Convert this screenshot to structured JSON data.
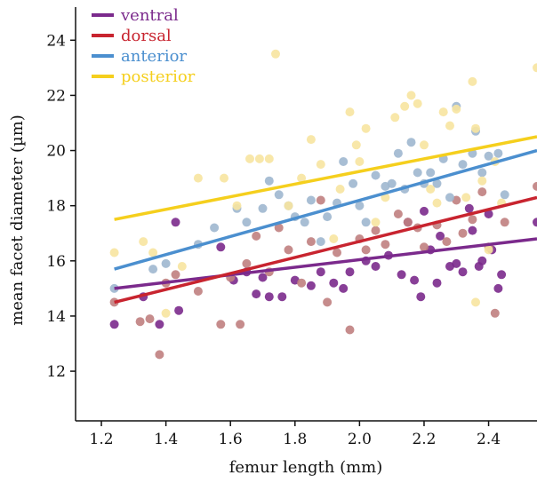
{
  "chart_data": {
    "type": "scatter",
    "xlabel": "femur length (mm)",
    "ylabel": "mean facet diameter (µm)",
    "xlim": [
      1.12,
      2.55
    ],
    "ylim": [
      10.2,
      25.2
    ],
    "xticks": [
      1.2,
      1.4,
      1.6,
      1.8,
      2.0,
      2.2,
      2.4
    ],
    "xtick_labels": [
      "1.2",
      "1.4",
      "1.6",
      "1.8",
      "2.0",
      "2.2",
      "2.4"
    ],
    "yticks": [
      12,
      14,
      16,
      18,
      20,
      22,
      24
    ],
    "ytick_labels": [
      "12",
      "14",
      "16",
      "18",
      "20",
      "22",
      "24"
    ],
    "grid": false,
    "legend_position": "top-left",
    "series": [
      {
        "name": "ventral",
        "color": "#7b2a8c",
        "point_color": "#7b2a8c",
        "fit": {
          "x": [
            1.24,
            2.55
          ],
          "y": [
            15.0,
            16.8
          ]
        },
        "points": [
          [
            1.24,
            13.7
          ],
          [
            1.33,
            14.7
          ],
          [
            1.38,
            13.7
          ],
          [
            1.43,
            17.4
          ],
          [
            1.44,
            14.2
          ],
          [
            1.57,
            16.5
          ],
          [
            1.61,
            15.3
          ],
          [
            1.65,
            15.6
          ],
          [
            1.68,
            14.8
          ],
          [
            1.7,
            15.4
          ],
          [
            1.72,
            14.7
          ],
          [
            1.76,
            14.7
          ],
          [
            1.8,
            15.3
          ],
          [
            1.85,
            15.1
          ],
          [
            1.88,
            15.6
          ],
          [
            1.92,
            15.2
          ],
          [
            1.95,
            15.0
          ],
          [
            1.97,
            15.6
          ],
          [
            2.02,
            16.0
          ],
          [
            2.05,
            15.8
          ],
          [
            2.09,
            16.2
          ],
          [
            2.13,
            15.5
          ],
          [
            2.15,
            17.4
          ],
          [
            2.17,
            15.3
          ],
          [
            2.19,
            14.7
          ],
          [
            2.2,
            17.8
          ],
          [
            2.22,
            16.4
          ],
          [
            2.24,
            15.2
          ],
          [
            2.25,
            16.9
          ],
          [
            2.28,
            15.8
          ],
          [
            2.3,
            15.9
          ],
          [
            2.32,
            15.6
          ],
          [
            2.34,
            17.9
          ],
          [
            2.35,
            17.1
          ],
          [
            2.37,
            15.8
          ],
          [
            2.38,
            16.0
          ],
          [
            2.4,
            17.7
          ],
          [
            2.41,
            16.4
          ],
          [
            2.43,
            15.0
          ],
          [
            2.44,
            15.5
          ],
          [
            2.55,
            17.4
          ]
        ]
      },
      {
        "name": "dorsal",
        "color": "#c8242f",
        "point_color": "#c08080",
        "fit": {
          "x": [
            1.24,
            2.55
          ],
          "y": [
            14.5,
            18.3
          ]
        },
        "points": [
          [
            1.24,
            14.5
          ],
          [
            1.32,
            13.8
          ],
          [
            1.35,
            13.9
          ],
          [
            1.38,
            12.6
          ],
          [
            1.4,
            15.2
          ],
          [
            1.43,
            15.5
          ],
          [
            1.5,
            14.9
          ],
          [
            1.57,
            13.7
          ],
          [
            1.6,
            15.4
          ],
          [
            1.63,
            13.7
          ],
          [
            1.65,
            15.9
          ],
          [
            1.68,
            16.9
          ],
          [
            1.72,
            15.6
          ],
          [
            1.75,
            17.2
          ],
          [
            1.78,
            16.4
          ],
          [
            1.82,
            15.2
          ],
          [
            1.85,
            16.7
          ],
          [
            1.88,
            18.2
          ],
          [
            1.9,
            14.5
          ],
          [
            1.93,
            16.3
          ],
          [
            1.97,
            13.5
          ],
          [
            2.0,
            16.8
          ],
          [
            2.02,
            16.4
          ],
          [
            2.05,
            17.1
          ],
          [
            2.08,
            16.6
          ],
          [
            2.12,
            17.7
          ],
          [
            2.15,
            17.4
          ],
          [
            2.18,
            17.2
          ],
          [
            2.2,
            16.5
          ],
          [
            2.24,
            17.3
          ],
          [
            2.27,
            16.7
          ],
          [
            2.3,
            18.2
          ],
          [
            2.32,
            17.0
          ],
          [
            2.35,
            17.5
          ],
          [
            2.38,
            18.5
          ],
          [
            2.4,
            16.5
          ],
          [
            2.42,
            14.1
          ],
          [
            2.45,
            17.4
          ],
          [
            2.55,
            18.7
          ]
        ]
      },
      {
        "name": "anterior",
        "color": "#4b8fcf",
        "point_color": "#9fb7cf",
        "fit": {
          "x": [
            1.24,
            2.55
          ],
          "y": [
            15.7,
            20.0
          ]
        },
        "points": [
          [
            1.24,
            15.0
          ],
          [
            1.36,
            15.7
          ],
          [
            1.4,
            15.9
          ],
          [
            1.5,
            16.6
          ],
          [
            1.55,
            17.2
          ],
          [
            1.62,
            17.9
          ],
          [
            1.65,
            17.4
          ],
          [
            1.7,
            17.9
          ],
          [
            1.72,
            18.9
          ],
          [
            1.75,
            18.4
          ],
          [
            1.78,
            18.0
          ],
          [
            1.8,
            17.6
          ],
          [
            1.83,
            17.4
          ],
          [
            1.85,
            18.2
          ],
          [
            1.88,
            16.7
          ],
          [
            1.9,
            17.6
          ],
          [
            1.93,
            18.1
          ],
          [
            1.95,
            19.6
          ],
          [
            1.98,
            18.8
          ],
          [
            2.0,
            18.0
          ],
          [
            2.02,
            17.4
          ],
          [
            2.05,
            19.1
          ],
          [
            2.08,
            18.7
          ],
          [
            2.1,
            18.8
          ],
          [
            2.12,
            19.9
          ],
          [
            2.14,
            18.6
          ],
          [
            2.16,
            20.3
          ],
          [
            2.18,
            19.2
          ],
          [
            2.2,
            18.8
          ],
          [
            2.22,
            19.2
          ],
          [
            2.24,
            18.8
          ],
          [
            2.26,
            19.7
          ],
          [
            2.28,
            18.3
          ],
          [
            2.3,
            21.6
          ],
          [
            2.32,
            19.5
          ],
          [
            2.35,
            19.9
          ],
          [
            2.36,
            20.7
          ],
          [
            2.38,
            19.2
          ],
          [
            2.4,
            19.8
          ],
          [
            2.43,
            19.9
          ],
          [
            2.45,
            18.4
          ]
        ]
      },
      {
        "name": "posterior",
        "color": "#f5cf1d",
        "point_color": "#f7e4a0",
        "fit": {
          "x": [
            1.24,
            2.55
          ],
          "y": [
            17.5,
            20.5
          ]
        },
        "points": [
          [
            1.24,
            16.3
          ],
          [
            1.33,
            16.7
          ],
          [
            1.36,
            16.3
          ],
          [
            1.4,
            14.1
          ],
          [
            1.45,
            15.8
          ],
          [
            1.5,
            19.0
          ],
          [
            1.58,
            19.0
          ],
          [
            1.62,
            18.0
          ],
          [
            1.66,
            19.7
          ],
          [
            1.69,
            19.7
          ],
          [
            1.72,
            19.7
          ],
          [
            1.74,
            23.5
          ],
          [
            1.78,
            18.0
          ],
          [
            1.82,
            19.0
          ],
          [
            1.85,
            20.4
          ],
          [
            1.88,
            19.5
          ],
          [
            1.92,
            16.8
          ],
          [
            1.94,
            18.6
          ],
          [
            1.97,
            21.4
          ],
          [
            1.99,
            20.2
          ],
          [
            2.0,
            19.6
          ],
          [
            2.02,
            20.8
          ],
          [
            2.05,
            17.4
          ],
          [
            2.08,
            18.3
          ],
          [
            2.11,
            21.2
          ],
          [
            2.14,
            21.6
          ],
          [
            2.16,
            22.0
          ],
          [
            2.18,
            21.7
          ],
          [
            2.2,
            20.2
          ],
          [
            2.22,
            18.6
          ],
          [
            2.24,
            18.1
          ],
          [
            2.26,
            21.4
          ],
          [
            2.28,
            20.9
          ],
          [
            2.3,
            21.5
          ],
          [
            2.33,
            18.3
          ],
          [
            2.35,
            22.5
          ],
          [
            2.36,
            20.8
          ],
          [
            2.38,
            18.9
          ],
          [
            2.4,
            16.4
          ],
          [
            2.42,
            19.6
          ],
          [
            2.44,
            18.1
          ],
          [
            2.55,
            23.0
          ],
          [
            2.36,
            14.5
          ]
        ]
      }
    ]
  }
}
